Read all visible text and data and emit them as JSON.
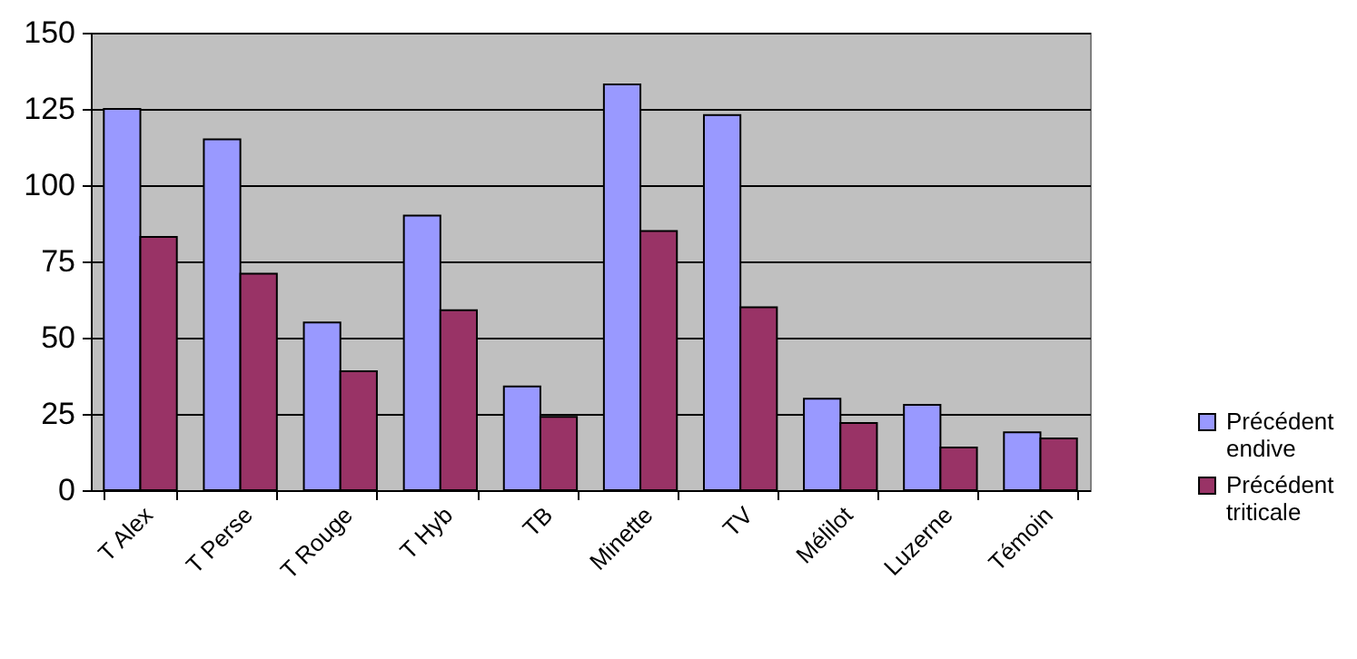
{
  "chart_data": {
    "type": "bar",
    "categories": [
      "T Alex",
      "T Perse",
      "T Rouge",
      "T Hyb",
      "TB",
      "Minette",
      "TV",
      "Mélilot",
      "Luzerne",
      "Témoin"
    ],
    "series": [
      {
        "name": "Précédent endive",
        "color": "#9999ff",
        "values": [
          125,
          115,
          55,
          90,
          34,
          133,
          123,
          30,
          28,
          19
        ]
      },
      {
        "name": "Précédent triticale",
        "color": "#993366",
        "values": [
          83,
          71,
          39,
          59,
          24,
          85,
          60,
          22,
          14,
          17
        ]
      }
    ],
    "ylim": [
      0,
      150
    ],
    "yticks": [
      0,
      25,
      50,
      75,
      100,
      125,
      150
    ],
    "grid": "y",
    "legend": "bottom right"
  }
}
